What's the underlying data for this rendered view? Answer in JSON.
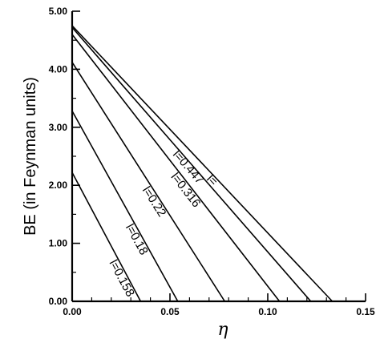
{
  "chart_data": {
    "type": "line",
    "xlabel": "η",
    "ylabel": "BE  (in Feynman units)",
    "xlim": [
      0,
      0.15
    ],
    "ylim": [
      0,
      5
    ],
    "x_ticks": [
      {
        "value": 0,
        "label": "0.00"
      },
      {
        "value": 0.05,
        "label": "0.05"
      },
      {
        "value": 0.1,
        "label": "0.10"
      },
      {
        "value": 0.15,
        "label": "0.15"
      }
    ],
    "y_ticks": [
      {
        "value": 0,
        "label": "0.00"
      },
      {
        "value": 1,
        "label": "1.00"
      },
      {
        "value": 2,
        "label": "2.00"
      },
      {
        "value": 3,
        "label": "3.00"
      },
      {
        "value": 4,
        "label": "4.00"
      },
      {
        "value": 5,
        "label": "5.00"
      }
    ],
    "grid": false,
    "series": [
      {
        "name": "l=0.158",
        "label": "l=0.158",
        "x": [
          0,
          0.035
        ],
        "y": [
          2.22,
          0
        ]
      },
      {
        "name": "l=0.18",
        "label": "l=0.18",
        "x": [
          0,
          0.054
        ],
        "y": [
          3.28,
          0
        ]
      },
      {
        "name": "l=0.22",
        "label": "l=0.22",
        "x": [
          0,
          0.078
        ],
        "y": [
          4.12,
          0
        ]
      },
      {
        "name": "l=0.316",
        "label": "l=0.316",
        "x": [
          0,
          0.106
        ],
        "y": [
          4.6,
          0
        ]
      },
      {
        "name": "l=0.447",
        "label": "l=0.447",
        "x": [
          0,
          0.122
        ],
        "y": [
          4.72,
          0
        ]
      },
      {
        "name": "l=",
        "label": "l=",
        "x": [
          0,
          0.133
        ],
        "y": [
          4.75,
          0
        ]
      }
    ],
    "line_color": "#000000"
  }
}
